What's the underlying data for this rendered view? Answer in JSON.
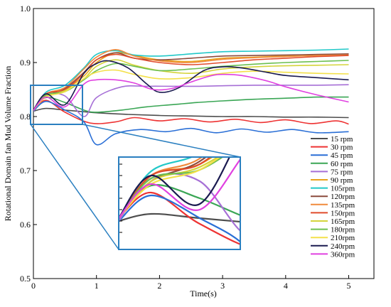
{
  "chart_data": {
    "type": "line",
    "xlabel": "Time(s)",
    "ylabel": "Rotational Domain fan Mud Volume Fraction",
    "xlim": [
      0,
      5.4
    ],
    "ylim": [
      0.5,
      1.0
    ],
    "xticks": [
      "0",
      "1",
      "2",
      "3",
      "4",
      "5"
    ],
    "yticks": [
      "0.5",
      "0.6",
      "0.7",
      "0.8",
      "0.9",
      "1.0"
    ],
    "grid": false,
    "legend_position": "right",
    "inset": {
      "type": "zoom",
      "source_box": {
        "x": [
          0.0,
          0.75
        ],
        "y": [
          0.79,
          0.855
        ]
      }
    },
    "series": [
      {
        "name": "15  rpm",
        "color": "#4d4d4d",
        "x": [
          0,
          0.2,
          0.5,
          1,
          1.5,
          2,
          2.5,
          3,
          3.5,
          4,
          4.5,
          5
        ],
        "y": [
          0.81,
          0.815,
          0.812,
          0.807,
          0.804,
          0.802,
          0.801,
          0.8,
          0.8,
          0.799,
          0.799,
          0.798
        ]
      },
      {
        "name": "30  rpm",
        "color": "#ee3333",
        "x": [
          0,
          0.2,
          0.5,
          0.9,
          1.3,
          1.6,
          2.0,
          2.4,
          2.8,
          3.2,
          3.6,
          4.0,
          4.4,
          4.8,
          5
        ],
        "y": [
          0.812,
          0.83,
          0.808,
          0.788,
          0.79,
          0.798,
          0.792,
          0.796,
          0.79,
          0.795,
          0.789,
          0.794,
          0.787,
          0.792,
          0.786
        ]
      },
      {
        "name": "45  rpm",
        "color": "#2a6fd6",
        "x": [
          0,
          0.2,
          0.5,
          0.8,
          1.0,
          1.3,
          1.7,
          2.1,
          2.5,
          2.9,
          3.3,
          3.7,
          4.1,
          4.5,
          5
        ],
        "y": [
          0.81,
          0.828,
          0.812,
          0.79,
          0.748,
          0.768,
          0.776,
          0.772,
          0.778,
          0.77,
          0.777,
          0.771,
          0.776,
          0.77,
          0.772
        ]
      },
      {
        "name": "60  rpm",
        "color": "#3aa655",
        "x": [
          0,
          0.2,
          0.5,
          0.8,
          1.0,
          1.4,
          1.8,
          2.2,
          2.6,
          3.0,
          3.5,
          4.0,
          4.5,
          5
        ],
        "y": [
          0.812,
          0.835,
          0.826,
          0.812,
          0.808,
          0.812,
          0.818,
          0.822,
          0.826,
          0.829,
          0.832,
          0.834,
          0.836,
          0.836
        ]
      },
      {
        "name": "75  rpm",
        "color": "#a66fd6",
        "x": [
          0,
          0.2,
          0.5,
          0.8,
          1.0,
          1.4,
          1.8,
          2.2,
          2.6,
          3.0,
          3.5,
          4.0,
          4.5,
          5
        ],
        "y": [
          0.81,
          0.84,
          0.838,
          0.8,
          0.835,
          0.855,
          0.856,
          0.856,
          0.856,
          0.857,
          0.858,
          0.858,
          0.858,
          0.859
        ]
      },
      {
        "name": "90  rpm",
        "color": "#e8a31c",
        "x": [
          0,
          0.2,
          0.5,
          0.8,
          1.0,
          1.3,
          1.6,
          2.0,
          2.5,
          3.0,
          3.5,
          4.0,
          4.5,
          5
        ],
        "y": [
          0.812,
          0.842,
          0.85,
          0.875,
          0.9,
          0.918,
          0.913,
          0.905,
          0.902,
          0.908,
          0.91,
          0.912,
          0.913,
          0.914
        ]
      },
      {
        "name": "105rpm",
        "color": "#22c8c8",
        "x": [
          0,
          0.2,
          0.5,
          0.8,
          1.0,
          1.3,
          1.6,
          2.0,
          2.5,
          3.0,
          3.5,
          4.0,
          4.5,
          5
        ],
        "y": [
          0.812,
          0.845,
          0.858,
          0.89,
          0.915,
          0.922,
          0.914,
          0.912,
          0.916,
          0.92,
          0.921,
          0.922,
          0.923,
          0.925
        ]
      },
      {
        "name": "120rpm",
        "color": "#8b4a3c",
        "x": [
          0,
          0.2,
          0.5,
          0.8,
          1.0,
          1.3,
          1.6,
          2.0,
          2.5,
          3.0,
          3.5,
          4.0,
          4.5,
          5
        ],
        "y": [
          0.812,
          0.838,
          0.852,
          0.882,
          0.905,
          0.918,
          0.908,
          0.905,
          0.908,
          0.912,
          0.913,
          0.914,
          0.915,
          0.916
        ]
      },
      {
        "name": "135rpm",
        "color": "#f08a3c",
        "x": [
          0,
          0.2,
          0.5,
          0.8,
          1.0,
          1.3,
          1.6,
          2.0,
          2.5,
          3.0,
          3.5,
          4.0,
          4.5,
          5
        ],
        "y": [
          0.812,
          0.842,
          0.854,
          0.888,
          0.91,
          0.924,
          0.912,
          0.903,
          0.9,
          0.906,
          0.909,
          0.911,
          0.913,
          0.914
        ]
      },
      {
        "name": "150rpm",
        "color": "#e04b2c",
        "x": [
          0,
          0.2,
          0.5,
          0.8,
          1.0,
          1.3,
          1.6,
          2.0,
          2.5,
          3.0,
          3.5,
          4.0,
          4.5,
          5
        ],
        "y": [
          0.812,
          0.842,
          0.85,
          0.88,
          0.905,
          0.915,
          0.908,
          0.9,
          0.896,
          0.9,
          0.905,
          0.908,
          0.911,
          0.913
        ]
      },
      {
        "name": "165rpm",
        "color": "#d4d43a",
        "x": [
          0,
          0.2,
          0.5,
          0.8,
          1.0,
          1.3,
          1.6,
          2.0,
          2.5,
          3.0,
          3.5,
          4.0,
          4.5,
          5
        ],
        "y": [
          0.812,
          0.838,
          0.848,
          0.87,
          0.893,
          0.905,
          0.895,
          0.885,
          0.88,
          0.888,
          0.892,
          0.894,
          0.895,
          0.896
        ]
      },
      {
        "name": "180rpm",
        "color": "#6cbf50",
        "x": [
          0,
          0.2,
          0.5,
          0.8,
          1.0,
          1.3,
          1.6,
          2.0,
          2.5,
          3.0,
          3.5,
          4.0,
          4.5,
          5
        ],
        "y": [
          0.812,
          0.84,
          0.846,
          0.868,
          0.885,
          0.898,
          0.893,
          0.885,
          0.888,
          0.893,
          0.897,
          0.9,
          0.902,
          0.904
        ]
      },
      {
        "name": "210rpm",
        "color": "#f3e04a",
        "x": [
          0,
          0.2,
          0.5,
          0.8,
          1.0,
          1.3,
          1.6,
          2.0,
          2.5,
          3.0,
          3.5,
          4.0,
          4.5,
          5
        ],
        "y": [
          0.812,
          0.836,
          0.846,
          0.87,
          0.882,
          0.886,
          0.878,
          0.87,
          0.872,
          0.88,
          0.884,
          0.882,
          0.88,
          0.879
        ]
      },
      {
        "name": "240rpm",
        "color": "#1a1a50",
        "x": [
          0,
          0.2,
          0.5,
          0.8,
          1.0,
          1.2,
          1.5,
          1.8,
          2.0,
          2.3,
          2.7,
          3.0,
          3.3,
          3.7,
          4.0,
          4.5,
          5
        ],
        "y": [
          0.812,
          0.842,
          0.822,
          0.88,
          0.898,
          0.903,
          0.89,
          0.86,
          0.845,
          0.853,
          0.885,
          0.892,
          0.89,
          0.882,
          0.876,
          0.872,
          0.868
        ]
      },
      {
        "name": "360rpm",
        "color": "#e040e0",
        "x": [
          0,
          0.2,
          0.5,
          0.8,
          1.0,
          1.3,
          1.6,
          1.9,
          2.2,
          2.5,
          2.8,
          3.0,
          3.3,
          3.7,
          4.0,
          4.5,
          5
        ],
        "y": [
          0.812,
          0.836,
          0.818,
          0.86,
          0.868,
          0.868,
          0.862,
          0.85,
          0.852,
          0.864,
          0.875,
          0.878,
          0.876,
          0.866,
          0.855,
          0.84,
          0.827
        ]
      }
    ]
  }
}
